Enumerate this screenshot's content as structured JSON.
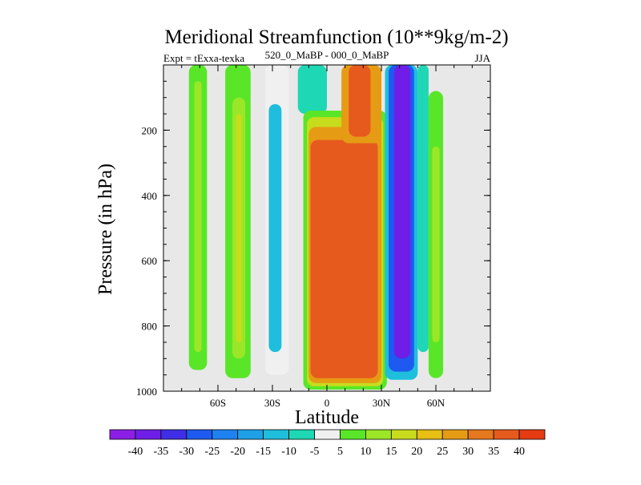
{
  "chart_data": {
    "type": "contour",
    "title": "Meridional Streamfunction (10**9kg/m-2)",
    "subtitle_left": "Expt = tExxa-texka",
    "subtitle_center": "520_0_MaBP - 000_0_MaBP",
    "subtitle_right": "JJA",
    "xlabel": "Latitude",
    "ylabel": "Pressure (in hPa)",
    "xlim": [
      -90,
      90
    ],
    "ylim": [
      1000,
      0
    ],
    "x_ticks": [
      {
        "value": -60,
        "label": "60S"
      },
      {
        "value": -30,
        "label": "30S"
      },
      {
        "value": 0,
        "label": "0"
      },
      {
        "value": 30,
        "label": "30N"
      },
      {
        "value": 60,
        "label": "60N"
      }
    ],
    "y_ticks": [
      {
        "value": 200,
        "label": "200"
      },
      {
        "value": 400,
        "label": "400"
      },
      {
        "value": 600,
        "label": "600"
      },
      {
        "value": 800,
        "label": "800"
      },
      {
        "value": 1000,
        "label": "1000"
      }
    ],
    "missing_color": "#e8e8e8",
    "colorbar": {
      "labels": [
        "-40",
        "-35",
        "-30",
        "-25",
        "-20",
        "-15",
        "-10",
        "-5",
        "5",
        "10",
        "15",
        "20",
        "25",
        "30",
        "35",
        "40"
      ],
      "colors": [
        "#8c1ee6",
        "#6e1ee6",
        "#3f2ee6",
        "#1e5af0",
        "#1e82f0",
        "#1ea0e6",
        "#1ebedc",
        "#1ed7b4",
        "#f0f0f0",
        "#5ae628",
        "#9ce628",
        "#c8dc1e",
        "#e6be14",
        "#e69b14",
        "#e6781e",
        "#e65a1e",
        "#e63c14"
      ]
    },
    "cells": [
      {
        "lat_range": [
          -76,
          -66
        ],
        "p_range": [
          0,
          935
        ],
        "v": 7
      },
      {
        "lat_range": [
          -73,
          -69
        ],
        "p_range": [
          50,
          880
        ],
        "v": 10
      },
      {
        "lat_range": [
          -56,
          -42
        ],
        "p_range": [
          0,
          960
        ],
        "v": 7
      },
      {
        "lat_range": [
          -52,
          -45
        ],
        "p_range": [
          100,
          900
        ],
        "v": 12
      },
      {
        "lat_range": [
          -50,
          -47
        ],
        "p_range": [
          150,
          850
        ],
        "v": 16
      },
      {
        "lat_range": [
          -34,
          -21
        ],
        "p_range": [
          0,
          950
        ],
        "v": -5
      },
      {
        "lat_range": [
          -32,
          -25
        ],
        "p_range": [
          120,
          880
        ],
        "v": -12
      },
      {
        "lat_range": [
          -16,
          0
        ],
        "p_range": [
          0,
          150
        ],
        "v": -6
      },
      {
        "lat_range": [
          -14,
          -5
        ],
        "p_range": [
          40,
          120
        ],
        "v": -10
      },
      {
        "lat_range": [
          -13,
          33
        ],
        "p_range": [
          140,
          995
        ],
        "v": 8
      },
      {
        "lat_range": [
          -11,
          31
        ],
        "p_range": [
          160,
          985
        ],
        "v": 18
      },
      {
        "lat_range": [
          -10,
          30
        ],
        "p_range": [
          190,
          975
        ],
        "v": 28
      },
      {
        "lat_range": [
          -9,
          28
        ],
        "p_range": [
          230,
          960
        ],
        "v": 38
      },
      {
        "lat_range": [
          8,
          30
        ],
        "p_range": [
          0,
          240
        ],
        "v": 25
      },
      {
        "lat_range": [
          12,
          24
        ],
        "p_range": [
          0,
          220
        ],
        "v": 35
      },
      {
        "lat_range": [
          32,
          50
        ],
        "p_range": [
          0,
          965
        ],
        "v": -15
      },
      {
        "lat_range": [
          34,
          48
        ],
        "p_range": [
          0,
          940
        ],
        "v": -28
      },
      {
        "lat_range": [
          37,
          46
        ],
        "p_range": [
          0,
          900
        ],
        "v": -38
      },
      {
        "lat_range": [
          50,
          56
        ],
        "p_range": [
          0,
          880
        ],
        "v": -6
      },
      {
        "lat_range": [
          56,
          64
        ],
        "p_range": [
          80,
          960
        ],
        "v": 7
      },
      {
        "lat_range": [
          58,
          62
        ],
        "p_range": [
          250,
          850
        ],
        "v": 12
      }
    ]
  }
}
